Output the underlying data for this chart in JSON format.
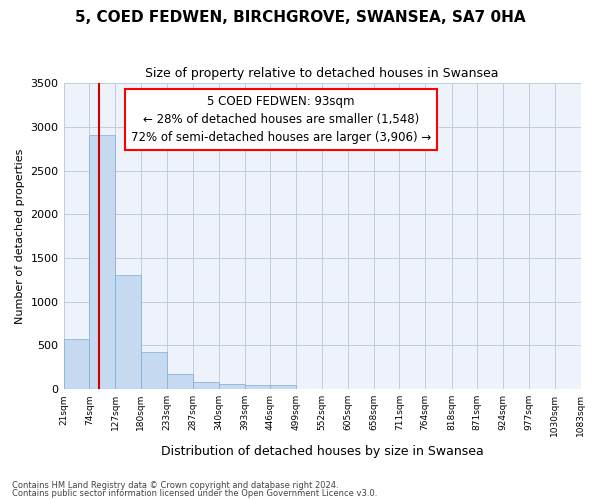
{
  "title": "5, COED FEDWEN, BIRCHGROVE, SWANSEA, SA7 0HA",
  "subtitle": "Size of property relative to detached houses in Swansea",
  "xlabel": "Distribution of detached houses by size in Swansea",
  "ylabel": "Number of detached properties",
  "footer_line1": "Contains HM Land Registry data © Crown copyright and database right 2024.",
  "footer_line2": "Contains public sector information licensed under the Open Government Licence v3.0.",
  "annotation_title": "5 COED FEDWEN: 93sqm",
  "annotation_line1": "← 28% of detached houses are smaller (1,548)",
  "annotation_line2": "72% of semi-detached houses are larger (3,906) →",
  "bar_color": "#c5d9f0",
  "bar_edge_color": "#7bafd4",
  "vline_color": "#cc0000",
  "background_color": "#eef2fa",
  "grid_color": "#c0cce0",
  "bin_labels": [
    "21sqm",
    "74sqm",
    "127sqm",
    "180sqm",
    "233sqm",
    "287sqm",
    "340sqm",
    "393sqm",
    "446sqm",
    "499sqm",
    "552sqm",
    "605sqm",
    "658sqm",
    "711sqm",
    "764sqm",
    "818sqm",
    "871sqm",
    "924sqm",
    "977sqm",
    "1030sqm",
    "1083sqm"
  ],
  "bin_edges": [
    21,
    74,
    127,
    180,
    233,
    287,
    340,
    393,
    446,
    499,
    552,
    605,
    658,
    711,
    764,
    818,
    871,
    924,
    977,
    1030,
    1083
  ],
  "bar_heights": [
    570,
    2910,
    1310,
    420,
    170,
    80,
    60,
    50,
    45,
    0,
    0,
    0,
    0,
    0,
    0,
    0,
    0,
    0,
    0,
    0
  ],
  "vline_x": 93,
  "ylim": [
    0,
    3500
  ],
  "yticks": [
    0,
    500,
    1000,
    1500,
    2000,
    2500,
    3000,
    3500
  ]
}
